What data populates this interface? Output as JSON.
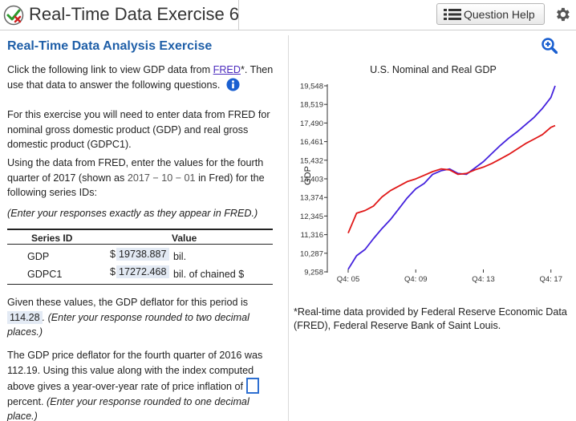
{
  "header": {
    "title": "Real-Time Data Exercise 6",
    "help_label": "Question Help"
  },
  "question": {
    "title": "Real-Time Data Analysis Exercise",
    "intro_pre": "Click the following link to view GDP data from ",
    "fred_link": "FRED",
    "intro_post": "*. Then use that data to answer the following questions.",
    "para2": "For this exercise you will need to enter data from FRED for nominal gross domestic product (GDP) and real gross domestic product (GDPC1).",
    "para3_pre": "Using the data from FRED, enter the values for the fourth quarter of 2017 (shown as ",
    "para3_date": "2017 − 10 − 01",
    "para3_post": " in Fred) for the following series IDs:",
    "instruction": "(Enter your responses exactly as they appear in FRED.)",
    "table": {
      "col_series": "Series ID",
      "col_value": "Value",
      "rows": [
        {
          "series": "GDP",
          "currency": "$",
          "value": "19738.887",
          "unit": "bil."
        },
        {
          "series": "GDPC1",
          "currency": "$",
          "value": "17272.468",
          "unit": "bil. of chained $"
        }
      ]
    },
    "deflator_pre": "Given these values, the GDP deflator for this period is",
    "deflator_value": "114.28",
    "deflator_post": ". (Enter your response rounded to two decimal places.)",
    "inflation_text": "The GDP price deflator for the fourth quarter of 2016 was 112.19. Using this value along with the index computed above gives a year-over-year rate of price inflation of",
    "inflation_post": "percent.",
    "inflation_hint": "(Enter your response rounded to one decimal place.)"
  },
  "chart_data": {
    "type": "line",
    "title": "U.S. Nominal and Real GDP",
    "ylabel": "GDP",
    "xlabel": "",
    "ylim": [
      9258,
      19548
    ],
    "yticks": [
      "19,548",
      "18,519",
      "17,490",
      "16,461",
      "15,432",
      "14,403",
      "13,374",
      "12,345",
      "11,316",
      "10,287",
      "9,258"
    ],
    "xticks": [
      "Q4: 05",
      "Q4: 09",
      "Q4: 13",
      "Q4: 17"
    ],
    "xtick_pos": [
      2005.75,
      2009.75,
      2013.75,
      2017.75
    ],
    "xlim": [
      2005.75,
      2018.0
    ],
    "series": [
      {
        "color": "#4422dd",
        "x": [
          2005.75,
          2006.25,
          2006.75,
          2007.25,
          2007.75,
          2008.25,
          2008.75,
          2009.25,
          2009.75,
          2010.25,
          2010.75,
          2011.25,
          2011.75,
          2012.25,
          2012.75,
          2013.25,
          2013.75,
          2014.25,
          2014.75,
          2015.25,
          2015.75,
          2016.25,
          2016.75,
          2017.25,
          2017.75,
          2018.0
        ],
        "values": [
          9400,
          10150,
          10500,
          11100,
          11650,
          12150,
          12750,
          13350,
          13850,
          14150,
          14650,
          14850,
          14950,
          14700,
          14650,
          15000,
          15350,
          15800,
          16250,
          16650,
          17000,
          17400,
          17800,
          18300,
          18900,
          19548
        ]
      },
      {
        "color": "#e01818",
        "x": [
          2005.75,
          2006.25,
          2006.75,
          2007.25,
          2007.75,
          2008.25,
          2008.75,
          2009.25,
          2009.75,
          2010.25,
          2010.75,
          2011.25,
          2011.75,
          2012.25,
          2012.75,
          2013.25,
          2013.75,
          2014.25,
          2014.75,
          2015.25,
          2015.75,
          2016.25,
          2016.75,
          2017.25,
          2017.75,
          2018.0
        ],
        "values": [
          11400,
          12500,
          12650,
          12900,
          13400,
          13750,
          14000,
          14250,
          14400,
          14600,
          14800,
          14950,
          14900,
          14650,
          14700,
          14900,
          15050,
          15250,
          15500,
          15750,
          16050,
          16350,
          16600,
          16850,
          17250,
          17350
        ]
      }
    ]
  },
  "footnote": "*Real-time data provided by Federal Reserve Economic Data (FRED), Federal Reserve Bank of Saint Louis.",
  "colors": {
    "title_blue": "#1f5fa8",
    "link": "#4b2bbd",
    "answer_bg": "#e3eaf4"
  },
  "icons": [
    "status-check-icon",
    "list-icon",
    "gear-icon",
    "info-icon",
    "zoom-in-icon"
  ]
}
